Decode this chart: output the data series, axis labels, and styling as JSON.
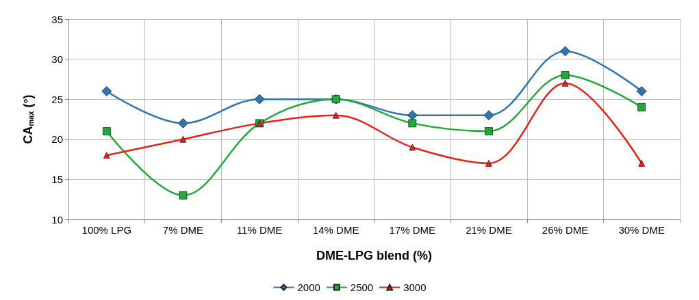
{
  "chart_data": {
    "type": "line",
    "xlabel": "DME-LPG blend (%)",
    "ylabel": "CA$_{max}$ (°)",
    "categories": [
      "100% LPG",
      "7% DME",
      "11% DME",
      "14% DME",
      "17% DME",
      "21% DME",
      "26% DME",
      "30% DME"
    ],
    "ylim": [
      10,
      35
    ],
    "yticks": [
      10,
      15,
      20,
      25,
      30,
      35
    ],
    "grid": true,
    "legend": "bottom",
    "line_style": "solid",
    "series": [
      {
        "name": "2000",
        "color": "#2e75b6",
        "marker": "diamond",
        "values": [
          26,
          22,
          25,
          25,
          23,
          23,
          31,
          26
        ]
      },
      {
        "name": "2500",
        "color": "#1faa3a",
        "marker": "square",
        "values": [
          21,
          13,
          22,
          25,
          22,
          21,
          28,
          24
        ]
      },
      {
        "name": "3000",
        "color": "#e8201c",
        "marker": "triangle",
        "values": [
          18,
          20,
          22,
          23,
          19,
          17,
          27,
          17
        ]
      }
    ]
  }
}
